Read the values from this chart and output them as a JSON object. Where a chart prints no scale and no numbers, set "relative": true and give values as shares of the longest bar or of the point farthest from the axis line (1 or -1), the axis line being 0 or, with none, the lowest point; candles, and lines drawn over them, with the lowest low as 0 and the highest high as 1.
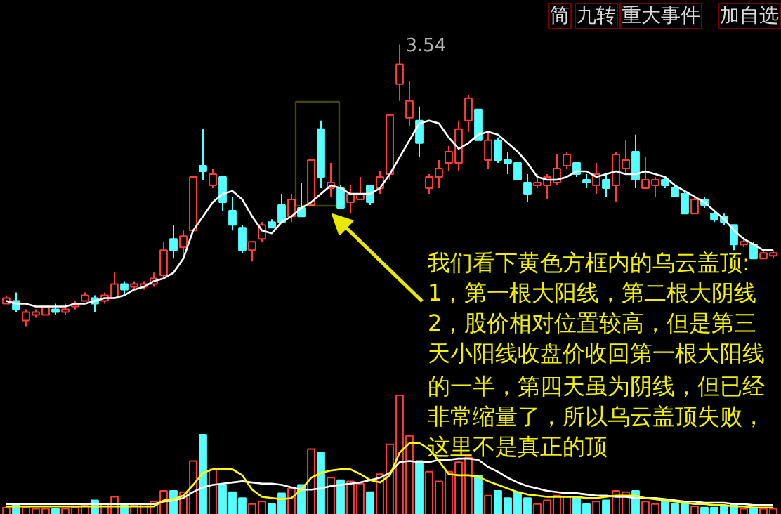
{
  "chart_data": [
    {
      "type": "candlestick",
      "relative": true,
      "categories": [
        null,
        null,
        null,
        null,
        null,
        null,
        null,
        null,
        null,
        null,
        null,
        null,
        null,
        null,
        null,
        null,
        null,
        null,
        null,
        null,
        null,
        null,
        null,
        null,
        null,
        null,
        null,
        null,
        null,
        null,
        null,
        null,
        null,
        null,
        null,
        null,
        null,
        null,
        null,
        null,
        null,
        null,
        null,
        null,
        null,
        null,
        null,
        null,
        null,
        null,
        null,
        null,
        null,
        null,
        null,
        null,
        null,
        null,
        null,
        null,
        null,
        null,
        null,
        null,
        null,
        null,
        null,
        null,
        null,
        null,
        null,
        null,
        null,
        null,
        null,
        null,
        null,
        null,
        null
      ],
      "ohlc": [
        [
          0.08,
          0.11,
          0.08,
          0.1
        ],
        [
          0.09,
          0.12,
          0.05,
          0.06
        ],
        [
          0.02,
          0.06,
          0,
          0.05
        ],
        [
          0.04,
          0.06,
          0.03,
          0.05
        ],
        [
          0.04,
          0.07,
          0.04,
          0.07
        ],
        [
          0.06,
          0.08,
          0.04,
          0.05
        ],
        [
          0.05,
          0.08,
          0.04,
          0.06
        ],
        [
          0.07,
          0.09,
          0.06,
          0.08
        ],
        [
          0.09,
          0.12,
          0.09,
          0.11
        ],
        [
          0.1,
          0.11,
          0.05,
          0.08
        ],
        [
          0.09,
          0.12,
          0.08,
          0.11
        ],
        [
          0.1,
          0.19,
          0.1,
          0.15
        ],
        [
          0.15,
          0.16,
          0.11,
          0.13
        ],
        [
          0.14,
          0.16,
          0.13,
          0.15
        ],
        [
          0.14,
          0.16,
          0.13,
          0.15
        ],
        [
          0.15,
          0.19,
          0.14,
          0.17
        ],
        [
          0.18,
          0.3,
          0.17,
          0.27
        ],
        [
          0.31,
          0.36,
          0.24,
          0.27
        ],
        [
          0.28,
          0.34,
          0.24,
          0.32
        ],
        [
          0.34,
          0.53,
          0.34,
          0.53
        ],
        [
          0.57,
          0.7,
          0.52,
          0.55
        ],
        [
          0.5,
          0.56,
          0.49,
          0.54
        ],
        [
          0.53,
          0.53,
          0.41,
          0.44
        ],
        [
          0.41,
          0.46,
          0.34,
          0.36
        ],
        [
          0.35,
          0.36,
          0.26,
          0.27
        ],
        [
          0.27,
          0.3,
          0.23,
          0.3
        ],
        [
          0.31,
          0.37,
          0.3,
          0.36
        ],
        [
          0.37,
          0.38,
          0.35,
          0.35
        ],
        [
          0.43,
          0.47,
          0.37,
          0.37
        ],
        [
          0.39,
          0.47,
          0.37,
          0.45
        ],
        [
          0.42,
          0.51,
          0.39,
          0.39
        ],
        [
          0.43,
          0.59,
          0.43,
          0.59
        ],
        [
          0.7,
          0.73,
          0.49,
          0.53
        ],
        [
          0.49,
          0.58,
          0.46,
          0.51
        ],
        [
          0.49,
          0.5,
          0.42,
          0.42
        ],
        [
          0.44,
          0.5,
          0.4,
          0.47
        ],
        [
          0.45,
          0.53,
          0.45,
          0.47
        ],
        [
          0.5,
          0.5,
          0.43,
          0.44
        ],
        [
          0.49,
          0.55,
          0.47,
          0.53
        ],
        [
          0.54,
          0.75,
          0.52,
          0.75
        ],
        [
          0.86,
          1,
          0.8,
          0.93
        ],
        [
          0.74,
          0.87,
          0.71,
          0.8
        ],
        [
          0.73,
          0.78,
          0.6,
          0.65
        ],
        [
          0.49,
          0.54,
          0.47,
          0.53
        ],
        [
          0.53,
          0.59,
          0.49,
          0.56
        ],
        [
          0.58,
          0.64,
          0.55,
          0.62
        ],
        [
          0.58,
          0.73,
          0.55,
          0.7
        ],
        [
          0.73,
          0.82,
          0.69,
          0.81
        ],
        [
          0.77,
          0.77,
          0.66,
          0.66
        ],
        [
          0.59,
          0.69,
          0.56,
          0.66
        ],
        [
          0.66,
          0.67,
          0.58,
          0.59
        ],
        [
          0.59,
          0.62,
          0.54,
          0.58
        ],
        [
          0.58,
          0.58,
          0.52,
          0.52
        ],
        [
          0.51,
          0.54,
          0.44,
          0.47
        ],
        [
          0.5,
          0.54,
          0.49,
          0.51
        ],
        [
          0.5,
          0.54,
          0.45,
          0.53
        ],
        [
          0.51,
          0.61,
          0.5,
          0.56
        ],
        [
          0.57,
          0.62,
          0.56,
          0.61
        ],
        [
          0.58,
          0.58,
          0.53,
          0.54
        ],
        [
          0.52,
          0.54,
          0.49,
          0.51
        ],
        [
          0.5,
          0.58,
          0.47,
          0.54
        ],
        [
          0.52,
          0.54,
          0.46,
          0.49
        ],
        [
          0.5,
          0.62,
          0.44,
          0.61
        ],
        [
          0.56,
          0.66,
          0.54,
          0.59
        ],
        [
          0.62,
          0.68,
          0.49,
          0.52
        ],
        [
          0.49,
          0.6,
          0.49,
          0.52
        ],
        [
          0.5,
          0.53,
          0.46,
          0.52
        ],
        [
          0.52,
          0.53,
          0.49,
          0.5
        ],
        [
          0.49,
          0.5,
          0.46,
          0.46
        ],
        [
          0.47,
          0.48,
          0.4,
          0.4
        ],
        [
          0.4,
          0.46,
          0.4,
          0.45
        ],
        [
          0.45,
          0.46,
          0.42,
          0.43
        ],
        [
          0.4,
          0.41,
          0.37,
          0.38
        ],
        [
          0.39,
          0.4,
          0.36,
          0.37
        ],
        [
          0.36,
          0.36,
          0.27,
          0.29
        ],
        [
          0.29,
          0.31,
          0.28,
          0.3
        ],
        [
          0.29,
          0.3,
          0.24,
          0.24
        ],
        [
          0.24,
          0.27,
          0.24,
          0.26
        ],
        [
          0.25,
          0.27,
          0.24,
          0.26
        ]
      ],
      "colors": [
        "#ff3c3c",
        "#54ffff",
        "#ff3c3c",
        "#ff3c3c",
        "#ff3c3c",
        "#54ffff",
        "#ff3c3c",
        "#ff3c3c",
        "#ff3c3c",
        "#54ffff",
        "#ff3c3c",
        "#ff3c3c",
        "#54ffff",
        "#ff3c3c",
        "#ff3c3c",
        "#ff3c3c",
        "#ff3c3c",
        "#54ffff",
        "#ff3c3c",
        "#ff3c3c",
        "#54ffff",
        "#ff3c3c",
        "#54ffff",
        "#54ffff",
        "#54ffff",
        "#ff3c3c",
        "#ff3c3c",
        "#54ffff",
        "#54ffff",
        "#ff3c3c",
        "#54ffff",
        "#ff3c3c",
        "#54ffff",
        "#ff3c3c",
        "#54ffff",
        "#ff3c3c",
        "#ff3c3c",
        "#54ffff",
        "#ff3c3c",
        "#ff3c3c",
        "#ff3c3c",
        "#ff3c3c",
        "#54ffff",
        "#ff3c3c",
        "#ff3c3c",
        "#ff3c3c",
        "#ff3c3c",
        "#ff3c3c",
        "#54ffff",
        "#ff3c3c",
        "#54ffff",
        "#54ffff",
        "#54ffff",
        "#54ffff",
        "#ff3c3c",
        "#ff3c3c",
        "#ff3c3c",
        "#ff3c3c",
        "#54ffff",
        "#54ffff",
        "#ff3c3c",
        "#54ffff",
        "#ff3c3c",
        "#ff3c3c",
        "#54ffff",
        "#ff3c3c",
        "#ff3c3c",
        "#54ffff",
        "#54ffff",
        "#54ffff",
        "#ff3c3c",
        "#54ffff",
        "#54ffff",
        "#54ffff",
        "#54ffff",
        "#ff3c3c",
        "#54ffff",
        "#ff3c3c",
        "#ff3c3c"
      ],
      "series": [
        {
          "type": "line",
          "color": "#ffffff",
          "values": [
            0.09,
            0.08,
            0.08,
            0.07,
            0.07,
            0.07,
            0.07,
            0.08,
            0.08,
            0.09,
            0.1,
            0.1,
            0.11,
            0.13,
            0.14,
            0.16,
            0.17,
            0.19,
            0.24,
            0.34,
            0.39,
            0.44,
            0.47,
            0.48,
            0.45,
            0.39,
            0.34,
            0.33,
            0.37,
            0.39,
            0.42,
            0.44,
            0.47,
            0.5,
            0.49,
            0.47,
            0.47,
            0.47,
            0.49,
            0.54,
            0.6,
            0.66,
            0.72,
            0.73,
            0.72,
            0.67,
            0.63,
            0.65,
            0.68,
            0.69,
            0.68,
            0.65,
            0.62,
            0.58,
            0.53,
            0.52,
            0.52,
            0.53,
            0.55,
            0.55,
            0.53,
            0.54,
            0.55,
            0.54,
            0.54,
            0.55,
            0.54,
            0.53,
            0.5,
            0.48,
            0.46,
            0.44,
            0.41,
            0.38,
            0.34,
            0.31,
            0.29,
            0.27,
            0.27
          ]
        }
      ],
      "annotations": [
        "简",
        "九转",
        "重大事件",
        "加自选",
        "3.54",
        "我们看下黄色方框内的乌云盖顶:",
        "1，第一根大阳线，第二根大阴线",
        "2，股价相对位置较高，但是第三",
        "天小阳线收盘价收回第一根大阳线"
      ]
    },
    {
      "type": "bar",
      "relative": true,
      "categories": [
        null,
        null,
        null,
        null,
        null,
        null,
        null,
        null,
        null,
        null,
        null,
        null,
        null,
        null,
        null,
        null,
        null,
        null,
        null,
        null,
        null,
        null,
        null,
        null,
        null,
        null,
        null,
        null,
        null,
        null,
        null,
        null,
        null,
        null,
        null,
        null,
        null,
        null,
        null,
        null,
        null,
        null,
        null,
        null,
        null,
        null,
        null,
        null,
        null,
        null,
        null,
        null,
        null,
        null,
        null,
        null,
        null,
        null,
        null,
        null,
        null,
        null,
        null,
        null,
        null,
        null,
        null,
        null,
        null,
        null,
        null,
        null,
        null,
        null,
        null,
        null,
        null,
        null,
        null
      ],
      "series": [
        {
          "type": "bar",
          "colors": [
            "#ff3c3c",
            "#54ffff",
            "#ff3c3c",
            "#ff3c3c",
            "#ff3c3c",
            "#54ffff",
            "#ff3c3c",
            "#ff3c3c",
            "#ff3c3c",
            "#54ffff",
            "#ff3c3c",
            "#ff3c3c",
            "#54ffff",
            "#ff3c3c",
            "#ff3c3c",
            "#ff3c3c",
            "#ff3c3c",
            "#54ffff",
            "#ff3c3c",
            "#ff3c3c",
            "#54ffff",
            "#ff3c3c",
            "#54ffff",
            "#54ffff",
            "#54ffff",
            "#ff3c3c",
            "#ff3c3c",
            "#54ffff",
            "#54ffff",
            "#ff3c3c",
            "#54ffff",
            "#ff3c3c",
            "#54ffff",
            "#ff3c3c",
            "#54ffff",
            "#ff3c3c",
            "#ff3c3c",
            "#54ffff",
            "#ff3c3c",
            "#ff3c3c",
            "#ff3c3c",
            "#ff3c3c",
            "#54ffff",
            "#ff3c3c",
            "#ff3c3c",
            "#ff3c3c",
            "#ff3c3c",
            "#ff3c3c",
            "#54ffff",
            "#ff3c3c",
            "#54ffff",
            "#54ffff",
            "#54ffff",
            "#54ffff",
            "#ff3c3c",
            "#ff3c3c",
            "#ff3c3c",
            "#ff3c3c",
            "#54ffff",
            "#54ffff",
            "#ff3c3c",
            "#54ffff",
            "#ff3c3c",
            "#ff3c3c",
            "#54ffff",
            "#ff3c3c",
            "#ff3c3c",
            "#54ffff",
            "#54ffff",
            "#54ffff",
            "#ff3c3c",
            "#54ffff",
            "#54ffff",
            "#54ffff",
            "#54ffff",
            "#ff3c3c",
            "#54ffff",
            "#ff3c3c",
            "#ff3c3c"
          ],
          "values": [
            0.06,
            0.09,
            0.06,
            0.05,
            0.05,
            0.05,
            0.05,
            0.06,
            0.08,
            0.12,
            0.09,
            0.15,
            0.08,
            0.08,
            0.09,
            0.11,
            0.2,
            0.2,
            0.19,
            0.45,
            0.67,
            0.38,
            0.25,
            0.19,
            0.14,
            0.09,
            0.11,
            0.09,
            0.18,
            0.22,
            0.25,
            0.55,
            0.52,
            0.31,
            0.29,
            0.28,
            0.26,
            0.19,
            0.34,
            0.59,
            1,
            0.66,
            0.45,
            0.36,
            0.28,
            0.36,
            0.44,
            0.48,
            0.33,
            0.16,
            0.2,
            0.14,
            0.19,
            0.14,
            0.09,
            0.12,
            0.16,
            0.15,
            0.15,
            0.09,
            0.11,
            0.12,
            0.2,
            0.19,
            0.2,
            0.11,
            0.09,
            0.11,
            0.09,
            0.11,
            0.07,
            0.06,
            0.06,
            0.07,
            0.09,
            0.05,
            0.06,
            0.05,
            0.05
          ]
        },
        {
          "type": "line",
          "color": "#ffffff",
          "values": [
            0.09,
            0.09,
            0.09,
            0.09,
            0.09,
            0.09,
            0.09,
            0.09,
            0.09,
            0.09,
            0.09,
            0.09,
            0.09,
            0.09,
            0.09,
            0.09,
            0.11,
            0.12,
            0.14,
            0.19,
            0.23,
            0.25,
            0.26,
            0.27,
            0.28,
            0.27,
            0.26,
            0.26,
            0.25,
            0.23,
            0.21,
            0.21,
            0.22,
            0.24,
            0.25,
            0.26,
            0.27,
            0.29,
            0.31,
            0.35,
            0.44,
            0.45,
            0.44,
            0.44,
            0.46,
            0.46,
            0.47,
            0.47,
            0.46,
            0.4,
            0.36,
            0.31,
            0.27,
            0.24,
            0.22,
            0.2,
            0.19,
            0.18,
            0.18,
            0.17,
            0.16,
            0.16,
            0.15,
            0.15,
            0.14,
            0.14,
            0.14,
            0.13,
            0.12,
            0.11,
            0.11,
            0.1,
            0.1,
            0.1,
            0.09,
            0.09,
            0.08,
            0.08,
            0.08
          ]
        },
        {
          "type": "line",
          "color": "#ffff00",
          "values": [
            0.07,
            0.07,
            0.07,
            0.07,
            0.07,
            0.07,
            0.07,
            0.07,
            0.07,
            0.07,
            0.07,
            0.07,
            0.07,
            0.07,
            0.07,
            0.07,
            0.12,
            0.13,
            0.16,
            0.25,
            0.35,
            0.38,
            0.38,
            0.38,
            0.33,
            0.21,
            0.15,
            0.14,
            0.13,
            0.14,
            0.21,
            0.31,
            0.35,
            0.37,
            0.38,
            0.38,
            0.34,
            0.29,
            0.27,
            0.33,
            0.52,
            0.6,
            0.6,
            0.55,
            0.45,
            0.34,
            0.33,
            0.33,
            0.32,
            0.28,
            0.25,
            0.22,
            0.19,
            0.17,
            0.16,
            0.15,
            0.15,
            0.15,
            0.15,
            0.14,
            0.14,
            0.15,
            0.16,
            0.16,
            0.16,
            0.14,
            0.13,
            0.12,
            0.11,
            0.1,
            0.09,
            0.09,
            0.08,
            0.08,
            0.07,
            0.07,
            0.06,
            0.06,
            0.06
          ]
        }
      ],
      "annotations": [
        "的一半，第四天虽为阴线，但已经",
        "非常缩量了，所以乌云盖顶失败，",
        "这里不是真正的顶"
      ]
    }
  ]
}
